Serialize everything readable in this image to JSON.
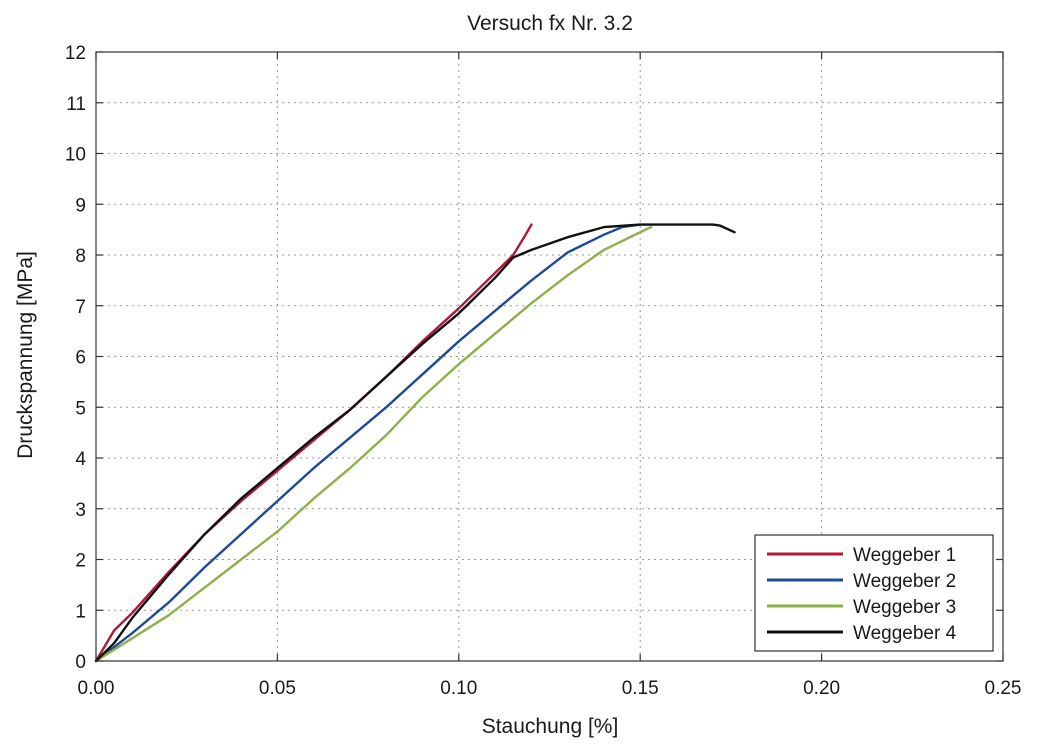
{
  "chart_data": {
    "type": "line",
    "title": "Versuch fx Nr. 3.2",
    "xlabel": "Stauchung [%]",
    "ylabel": "Druckspannung [MPa]",
    "xlim": [
      0,
      0.25
    ],
    "ylim": [
      0,
      12
    ],
    "xticks": [
      0,
      0.05,
      0.1,
      0.15,
      0.2,
      0.25
    ],
    "xtick_labels": [
      "0.00",
      "0.05",
      "0.10",
      "0.15",
      "0.20",
      "0.25"
    ],
    "yticks": [
      0,
      1,
      2,
      3,
      4,
      5,
      6,
      7,
      8,
      9,
      10,
      11,
      12
    ],
    "ytick_labels": [
      "0",
      "1",
      "2",
      "3",
      "4",
      "5",
      "6",
      "7",
      "8",
      "9",
      "10",
      "11",
      "12"
    ],
    "grid": true,
    "legend_position": "bottom-right",
    "series": [
      {
        "name": "Weggeber 1",
        "color": "#b0183a",
        "points": [
          [
            0,
            0
          ],
          [
            0.005,
            0.6
          ],
          [
            0.01,
            0.95
          ],
          [
            0.02,
            1.75
          ],
          [
            0.03,
            2.5
          ],
          [
            0.04,
            3.15
          ],
          [
            0.05,
            3.75
          ],
          [
            0.06,
            4.35
          ],
          [
            0.07,
            4.95
          ],
          [
            0.08,
            5.6
          ],
          [
            0.09,
            6.3
          ],
          [
            0.1,
            6.95
          ],
          [
            0.11,
            7.65
          ],
          [
            0.115,
            8.0
          ],
          [
            0.118,
            8.35
          ],
          [
            0.12,
            8.6
          ]
        ]
      },
      {
        "name": "Weggeber 2",
        "color": "#1f4a96",
        "points": [
          [
            0,
            0
          ],
          [
            0.01,
            0.55
          ],
          [
            0.02,
            1.15
          ],
          [
            0.03,
            1.85
          ],
          [
            0.04,
            2.5
          ],
          [
            0.05,
            3.15
          ],
          [
            0.06,
            3.8
          ],
          [
            0.07,
            4.4
          ],
          [
            0.08,
            5.0
          ],
          [
            0.09,
            5.65
          ],
          [
            0.1,
            6.3
          ],
          [
            0.11,
            6.9
          ],
          [
            0.12,
            7.5
          ],
          [
            0.13,
            8.05
          ],
          [
            0.14,
            8.4
          ],
          [
            0.145,
            8.55
          ],
          [
            0.15,
            8.6
          ]
        ]
      },
      {
        "name": "Weggeber 3",
        "color": "#8cb04a",
        "points": [
          [
            0,
            0
          ],
          [
            0.01,
            0.45
          ],
          [
            0.02,
            0.9
          ],
          [
            0.03,
            1.45
          ],
          [
            0.04,
            2.0
          ],
          [
            0.05,
            2.55
          ],
          [
            0.06,
            3.2
          ],
          [
            0.07,
            3.8
          ],
          [
            0.08,
            4.45
          ],
          [
            0.09,
            5.2
          ],
          [
            0.1,
            5.85
          ],
          [
            0.11,
            6.45
          ],
          [
            0.12,
            7.05
          ],
          [
            0.13,
            7.6
          ],
          [
            0.14,
            8.1
          ],
          [
            0.15,
            8.45
          ],
          [
            0.153,
            8.55
          ]
        ]
      },
      {
        "name": "Weggeber 4",
        "color": "#111111",
        "points": [
          [
            0,
            0
          ],
          [
            0.005,
            0.35
          ],
          [
            0.01,
            0.85
          ],
          [
            0.02,
            1.7
          ],
          [
            0.03,
            2.5
          ],
          [
            0.04,
            3.2
          ],
          [
            0.05,
            3.8
          ],
          [
            0.06,
            4.4
          ],
          [
            0.07,
            4.95
          ],
          [
            0.08,
            5.6
          ],
          [
            0.09,
            6.25
          ],
          [
            0.1,
            6.85
          ],
          [
            0.11,
            7.55
          ],
          [
            0.115,
            7.95
          ],
          [
            0.12,
            8.1
          ],
          [
            0.13,
            8.35
          ],
          [
            0.14,
            8.55
          ],
          [
            0.15,
            8.6
          ],
          [
            0.16,
            8.6
          ],
          [
            0.17,
            8.6
          ],
          [
            0.172,
            8.58
          ],
          [
            0.176,
            8.45
          ]
        ]
      }
    ]
  }
}
